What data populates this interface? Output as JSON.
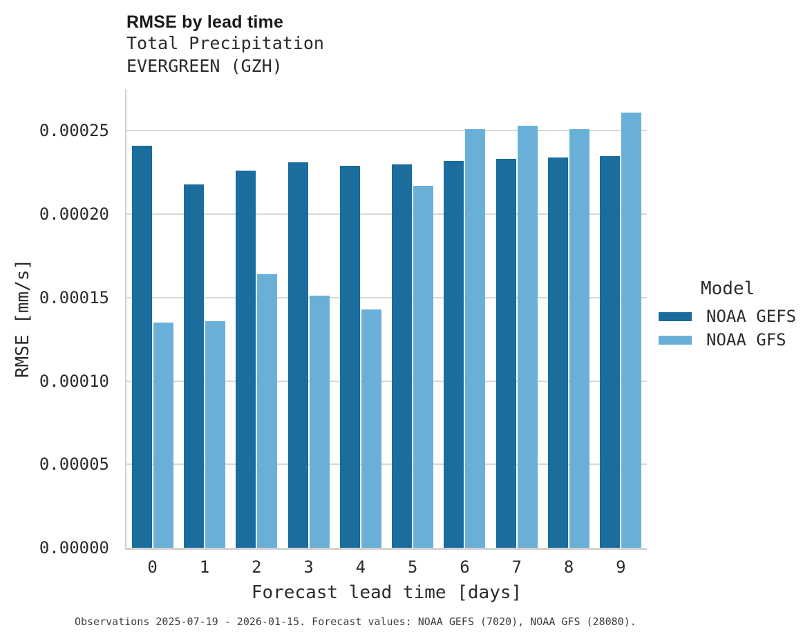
{
  "figure": {
    "title": "RMSE by lead time",
    "subtitle_line1": "Total Precipitation",
    "subtitle_line2": "EVERGREEN (GZH)",
    "caption": "Observations 2025-07-19 - 2026-01-15. Forecast values: NOAA GEFS (7020), NOAA GFS (28080)."
  },
  "chart_data": {
    "type": "bar",
    "title": "RMSE by lead time",
    "subtitle": [
      "Total Precipitation",
      "EVERGREEN (GZH)"
    ],
    "xlabel": "Forecast lead time [days]",
    "ylabel": "RMSE [mm/s]",
    "categories": [
      "0",
      "1",
      "2",
      "3",
      "4",
      "5",
      "6",
      "7",
      "8",
      "9"
    ],
    "series": [
      {
        "name": "NOAA GEFS",
        "color": "#1a6d9c",
        "values": [
          0.000241,
          0.000218,
          0.000226,
          0.000231,
          0.000229,
          0.00023,
          0.000232,
          0.000233,
          0.000234,
          0.000235
        ]
      },
      {
        "name": "NOAA GFS",
        "color": "#69b0d8",
        "values": [
          0.000135,
          0.000136,
          0.000164,
          0.000151,
          0.000143,
          0.000217,
          0.000251,
          0.000253,
          0.000251,
          0.000261
        ]
      }
    ],
    "ylim": [
      0,
      0.000275
    ],
    "yticks": [
      {
        "value": 0.0,
        "label": "0.00000"
      },
      {
        "value": 5e-05,
        "label": "0.00005"
      },
      {
        "value": 0.0001,
        "label": "0.00010"
      },
      {
        "value": 0.00015,
        "label": "0.00015"
      },
      {
        "value": 0.0002,
        "label": "0.00020"
      },
      {
        "value": 0.00025,
        "label": "0.00025"
      }
    ],
    "grid": "horizontal",
    "legend": {
      "title": "Model",
      "position": "right-center"
    },
    "colors": {
      "grid": "#d7d7d7",
      "spine": "#d2d2d2",
      "noaa_gefs": "#1a6d9c",
      "noaa_gfs": "#69b0d8"
    }
  }
}
